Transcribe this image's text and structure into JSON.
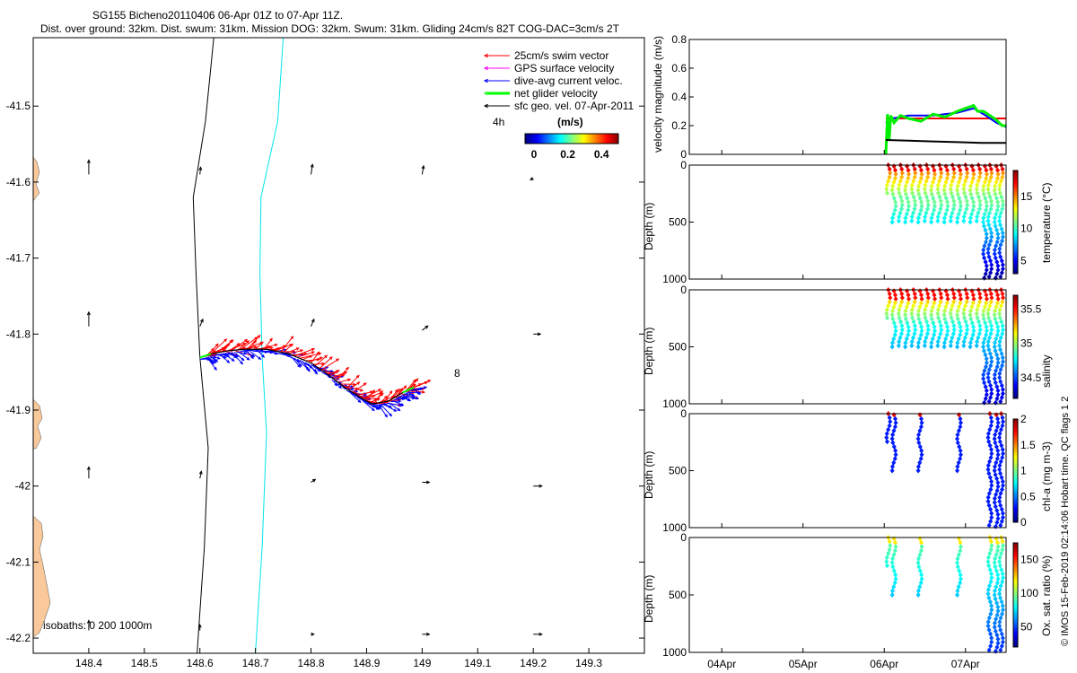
{
  "header": {
    "title_line1": "SG155 Bicheno20110406 06-Apr 01Z to 07-Apr 11Z.",
    "title_line2": "Dist. over ground: 32km. Dist. swum: 31km. Mission DOG: 32km. Swum: 31km. Gliding 24cm/s 82T COG-DAC=3cm/s 2T"
  },
  "colors": {
    "land": "#f9c99b",
    "swim": "#ff0000",
    "gps": "#ff00ff",
    "dac": "#0000ff",
    "net": "#00ff00",
    "sfc": "#000000",
    "iso200": "#00e5ee",
    "iso0": "#000000",
    "mag_red": "#ff0000",
    "mag_blue": "#0000ff",
    "mag_green": "#00ee00",
    "mag_black": "#000000"
  },
  "map": {
    "legend": [
      {
        "label": "25cm/s swim vector",
        "color": "#ff0000"
      },
      {
        "label": "GPS surface velocity",
        "color": "#ff00ff"
      },
      {
        "label": "dive-avg current veloc.",
        "color": "#0000ff"
      },
      {
        "label": "net glider velocity",
        "color": "#00ff00"
      },
      {
        "label": "sfc geo. vel. 07-Apr-2011",
        "color": "#000000"
      }
    ],
    "speed_label": "4h",
    "colorbar_unit": "(m/s)",
    "colorbar_ticks": [
      "0",
      "0.2",
      "0.4"
    ],
    "isobaths_label": "isobaths: 0   200  1000m",
    "annotation": "8",
    "side_label": "© IMOS 15-Feb-2019 02:14:06 Hobart time. QC flags 1  2"
  },
  "chart_data": [
    {
      "type": "scatter",
      "title": "",
      "xlabel": "",
      "ylabel": "",
      "xlim": [
        148.3,
        149.4
      ],
      "ylim": [
        -42.22,
        -41.41
      ],
      "x_ticks": [
        "148.4",
        "148.5",
        "148.6",
        "148.7",
        "148.8",
        "148.9",
        "149",
        "149.1",
        "149.2",
        "149.3"
      ],
      "y_ticks": [
        "-41.5",
        "-41.6",
        "-41.7",
        "-41.8",
        "-41.9",
        "-42",
        "-42.1",
        "-42.2"
      ],
      "glider_track": [
        [
          148.6,
          -41.831
        ],
        [
          148.62,
          -41.826
        ],
        [
          148.65,
          -41.822
        ],
        [
          148.68,
          -41.82
        ],
        [
          148.72,
          -41.82
        ],
        [
          148.76,
          -41.826
        ],
        [
          148.8,
          -41.838
        ],
        [
          148.83,
          -41.853
        ],
        [
          148.86,
          -41.87
        ],
        [
          148.89,
          -41.884
        ],
        [
          148.91,
          -41.892
        ],
        [
          148.94,
          -41.888
        ],
        [
          148.965,
          -41.877
        ],
        [
          148.985,
          -41.87
        ]
      ],
      "isobath_0": [
        [
          148.625,
          -41.41
        ],
        [
          148.61,
          -41.52
        ],
        [
          148.588,
          -41.62
        ],
        [
          148.593,
          -41.72
        ],
        [
          148.6,
          -41.83
        ],
        [
          148.615,
          -41.95
        ],
        [
          148.608,
          -42.08
        ],
        [
          148.595,
          -42.22
        ]
      ],
      "isobath_200": [
        [
          148.75,
          -41.41
        ],
        [
          148.74,
          -41.52
        ],
        [
          148.71,
          -41.62
        ],
        [
          148.708,
          -41.72
        ],
        [
          148.712,
          -41.83
        ],
        [
          148.72,
          -41.93
        ],
        [
          148.712,
          -42.08
        ],
        [
          148.7,
          -42.22
        ]
      ],
      "geo_arrows": [
        {
          "lon": 148.4,
          "lat": -41.59,
          "u": 0.0,
          "v": 0.1
        },
        {
          "lon": 148.6,
          "lat": -41.59,
          "u": 0.005,
          "v": 0.05
        },
        {
          "lon": 148.8,
          "lat": -41.59,
          "u": 0.01,
          "v": 0.07
        },
        {
          "lon": 149.0,
          "lat": -41.59,
          "u": 0.01,
          "v": 0.06
        },
        {
          "lon": 149.2,
          "lat": -41.595,
          "u": -0.02,
          "v": -0.01
        },
        {
          "lon": 148.4,
          "lat": -41.79,
          "u": 0.0,
          "v": 0.1
        },
        {
          "lon": 148.6,
          "lat": -41.79,
          "u": 0.02,
          "v": 0.05
        },
        {
          "lon": 148.8,
          "lat": -41.79,
          "u": 0.02,
          "v": 0.05
        },
        {
          "lon": 149.0,
          "lat": -41.795,
          "u": 0.04,
          "v": 0.03
        },
        {
          "lon": 149.2,
          "lat": -41.8,
          "u": 0.05,
          "v": 0.0
        },
        {
          "lon": 148.4,
          "lat": -41.99,
          "u": 0.0,
          "v": 0.08
        },
        {
          "lon": 148.6,
          "lat": -41.99,
          "u": 0.01,
          "v": 0.05
        },
        {
          "lon": 148.8,
          "lat": -41.995,
          "u": 0.03,
          "v": 0.02
        },
        {
          "lon": 149.0,
          "lat": -41.995,
          "u": 0.05,
          "v": 0.0
        },
        {
          "lon": 149.2,
          "lat": -42.0,
          "u": 0.06,
          "v": 0.0
        },
        {
          "lon": 148.4,
          "lat": -42.19,
          "u": 0.0,
          "v": 0.07
        },
        {
          "lon": 148.6,
          "lat": -42.19,
          "u": 0.0,
          "v": 0.04
        },
        {
          "lon": 148.8,
          "lat": -42.195,
          "u": 0.02,
          "v": 0.0
        },
        {
          "lon": 149.0,
          "lat": -42.195,
          "u": 0.05,
          "v": 0.0
        },
        {
          "lon": 149.2,
          "lat": -42.195,
          "u": 0.06,
          "v": 0.0
        }
      ]
    },
    {
      "type": "line",
      "ylabel": "velocity magnitude (m/s)",
      "ylim": [
        0,
        0.8
      ],
      "y_ticks": [
        "0",
        "0.2",
        "0.4",
        "0.6",
        "0.8"
      ],
      "xlim": [
        3.6,
        7.5
      ],
      "series": [
        {
          "color": "#ff0000",
          "x": [
            6.02,
            7.5
          ],
          "values": [
            0.25,
            0.25
          ]
        },
        {
          "color": "#0000ff",
          "x": [
            6.02,
            6.1,
            6.3,
            6.6,
            6.9,
            7.1,
            7.25,
            7.38,
            7.5
          ],
          "values": [
            0.22,
            0.25,
            0.27,
            0.27,
            0.29,
            0.32,
            0.27,
            0.22,
            0.19
          ]
        },
        {
          "color": "#00ee00",
          "x": [
            6.02,
            6.04,
            6.06,
            6.08,
            6.12,
            6.2,
            6.3,
            6.45,
            6.6,
            6.75,
            6.9,
            7.0,
            7.1,
            7.15,
            7.22,
            7.3,
            7.38,
            7.45,
            7.5
          ],
          "values": [
            0.0,
            0.28,
            0.1,
            0.27,
            0.22,
            0.27,
            0.25,
            0.23,
            0.28,
            0.26,
            0.3,
            0.32,
            0.34,
            0.3,
            0.3,
            0.27,
            0.24,
            0.2,
            0.2
          ]
        },
        {
          "color": "#000000",
          "x": [
            6.02,
            6.3,
            6.6,
            6.9,
            7.2,
            7.5
          ],
          "values": [
            0.1,
            0.095,
            0.09,
            0.085,
            0.08,
            0.08
          ]
        }
      ]
    },
    {
      "type": "scatter",
      "ylabel": "Depth (m)",
      "clabel": "temperature (°C)",
      "ylim": [
        1000,
        0
      ],
      "y_ticks": [
        "0",
        "500",
        "1000"
      ],
      "clim": [
        3,
        19
      ],
      "c_ticks": [
        "5",
        "10",
        "15"
      ],
      "colormap": "jet",
      "data_key": "temp"
    },
    {
      "type": "scatter",
      "ylabel": "Depth (m)",
      "clabel": "salinity",
      "ylim": [
        1000,
        0
      ],
      "y_ticks": [
        "0",
        "500",
        "1000"
      ],
      "clim": [
        34.2,
        35.7
      ],
      "c_ticks": [
        "34.5",
        "35",
        "35.5"
      ],
      "colormap": "jet",
      "data_key": "sal"
    },
    {
      "type": "scatter",
      "ylabel": "Depth (m)",
      "clabel": "chl-a (mg m-3)",
      "ylim": [
        1000,
        0
      ],
      "y_ticks": [
        "0",
        "500",
        "1000"
      ],
      "clim": [
        0,
        2
      ],
      "c_ticks": [
        "0",
        "0.5",
        "1",
        "1.5",
        "2"
      ],
      "colormap": "jet",
      "data_key": "chl"
    },
    {
      "type": "scatter",
      "ylabel": "Depth (m)",
      "clabel": "Ox. sat. ratio (%)",
      "ylim": [
        1000,
        0
      ],
      "y_ticks": [
        "0",
        "500",
        "1000"
      ],
      "clim": [
        20,
        175
      ],
      "c_ticks": [
        "50",
        "100",
        "150"
      ],
      "colormap": "jet",
      "data_key": "oxy"
    }
  ],
  "time_axis": {
    "x_ticks": [
      {
        "label": "04Apr",
        "value": 4.0
      },
      {
        "label": "05Apr",
        "value": 5.0
      },
      {
        "label": "06Apr",
        "value": 6.0
      },
      {
        "label": "07Apr",
        "value": 7.0
      }
    ],
    "xlim": [
      3.6,
      7.5
    ]
  }
}
